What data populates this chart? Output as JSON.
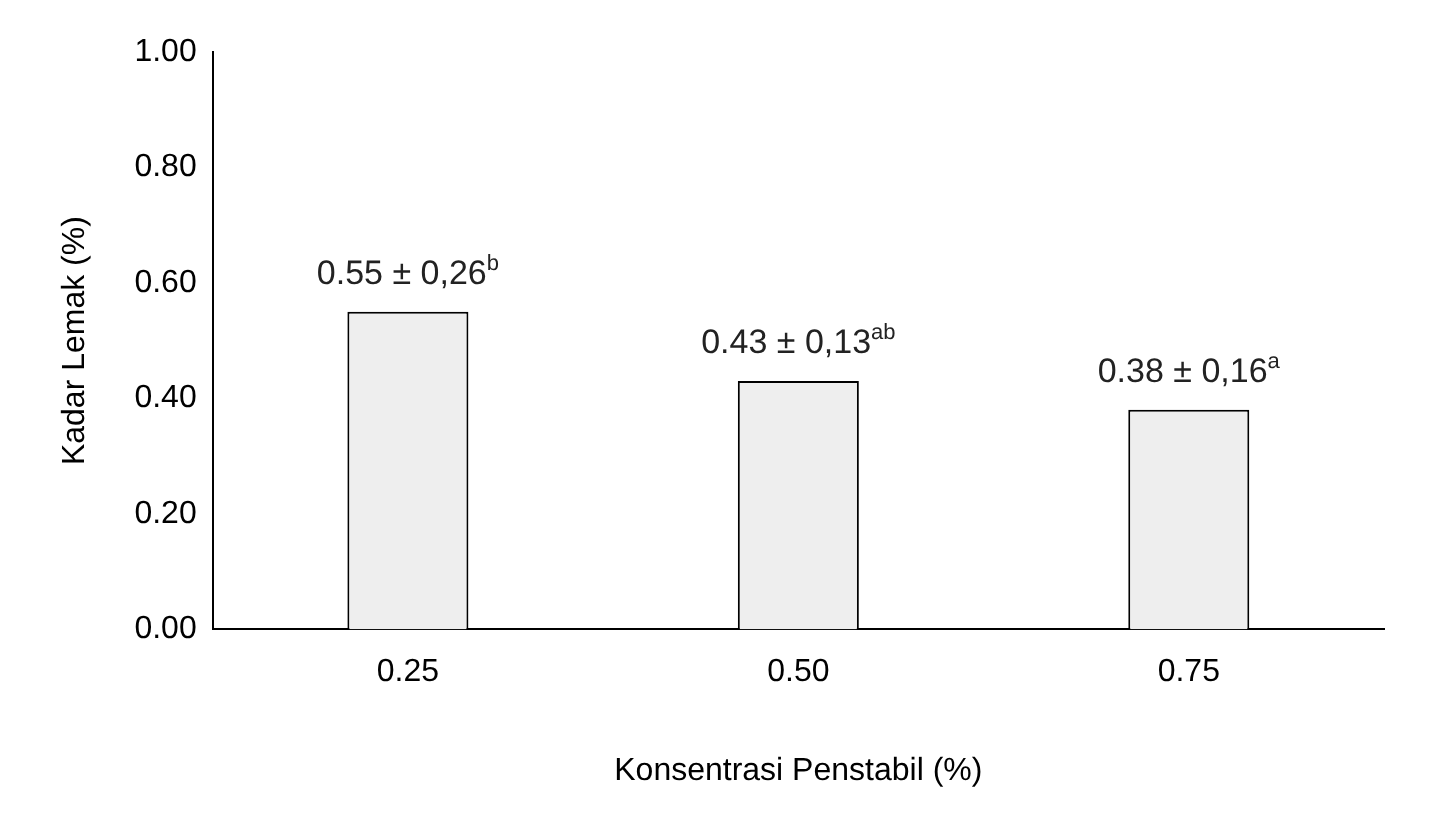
{
  "chart_data": {
    "type": "bar",
    "xlabel": "Konsentrasi Penstabil (%)",
    "ylabel": "Kadar Lemak (%)",
    "categories": [
      "0.25",
      "0.50",
      "0.75"
    ],
    "values": [
      0.55,
      0.43,
      0.38
    ],
    "color": "#eeeeee",
    "value_labels": [
      "0.55 ± 0,26$^{b}$",
      "0.43 ± 0,13$^{ab}$",
      "0.38 ± 0,16$^{a}$"
    ],
    "ylim": [
      0,
      1
    ],
    "yticks": [
      {
        "value": 0,
        "label": "0.00"
      },
      {
        "value": 0.2,
        "label": "0.20"
      },
      {
        "value": 0.4,
        "label": "0.40"
      },
      {
        "value": 0.6,
        "label": "0.60"
      },
      {
        "value": 0.8,
        "label": "0.80"
      },
      {
        "value": 1,
        "label": "1.00"
      }
    ],
    "grid": false,
    "legend": false
  }
}
